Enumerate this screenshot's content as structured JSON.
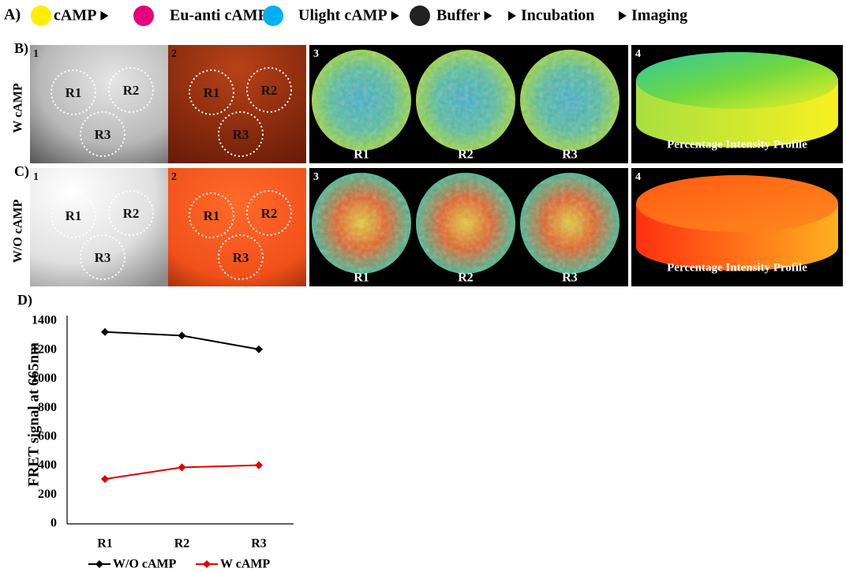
{
  "panel_a": {
    "label": "A)",
    "steps": [
      "cAMP",
      "Eu-anti cAMP",
      "Ulight cAMP",
      "Buffer",
      "Incubation",
      "Imaging"
    ]
  },
  "panel_b": {
    "label": "B)",
    "row_label": "W cAMP",
    "tile_numbers": [
      "1",
      "2",
      "3",
      "4"
    ],
    "regions": [
      "R1",
      "R2",
      "R3"
    ],
    "profile_caption": "Percentage Intensity Profile"
  },
  "panel_c": {
    "label": "C)",
    "row_label": "W/O cAMP",
    "tile_numbers": [
      "1",
      "2",
      "3",
      "4"
    ],
    "regions": [
      "R1",
      "R2",
      "R3"
    ],
    "profile_caption": "Percentage Intensity Profile"
  },
  "chart_data": {
    "type": "line",
    "panel_label": "D)",
    "y_label": "FRET signal at 665nm",
    "categories": [
      "R1",
      "R2",
      "R3"
    ],
    "series": [
      {
        "name": "W/O cAMP",
        "color": "#000000",
        "values": [
          1325,
          1300,
          1205
        ]
      },
      {
        "name": "W cAMP",
        "color": "#e00000",
        "values": [
          310,
          390,
          405
        ]
      }
    ],
    "ylim": [
      0,
      1400
    ],
    "yticks": [
      0,
      200,
      400,
      600,
      800,
      1000,
      1200,
      1400
    ],
    "grid": false
  }
}
